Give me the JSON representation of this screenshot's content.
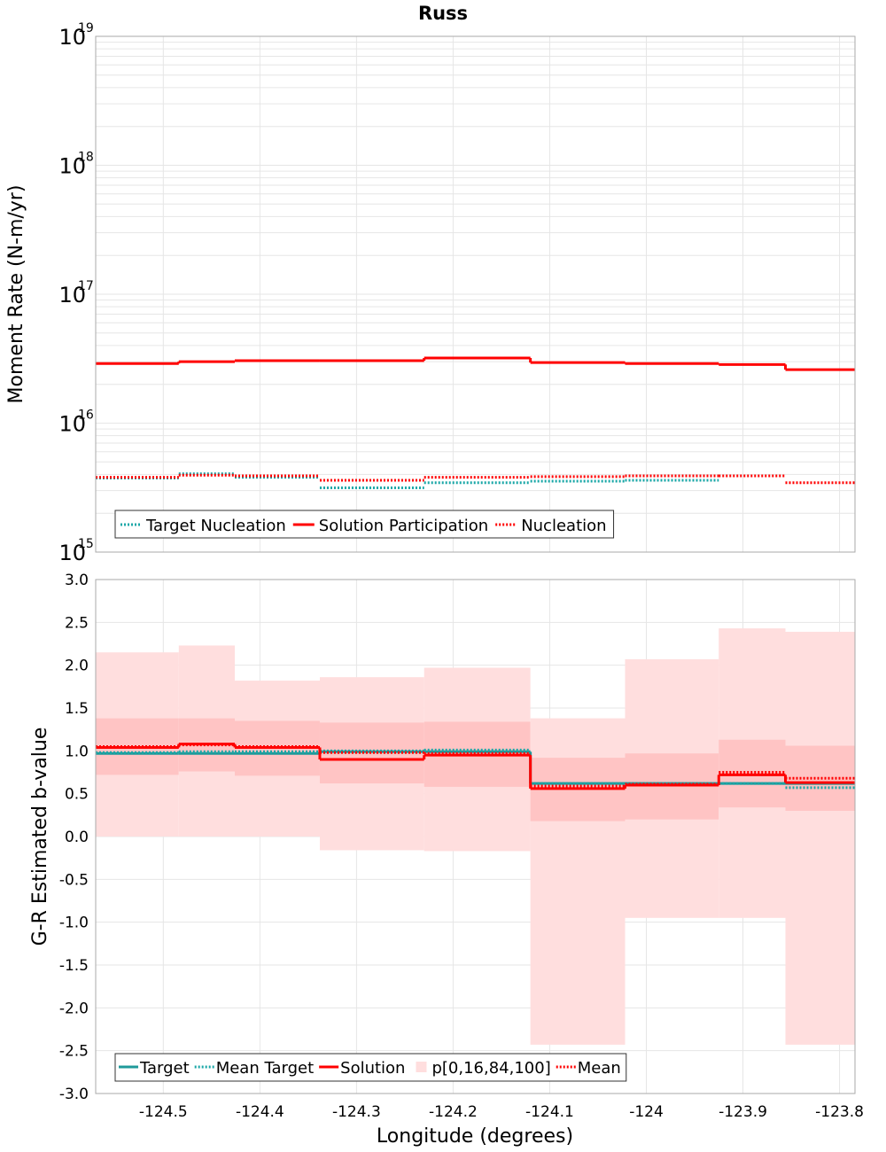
{
  "title": "Russ",
  "colors": {
    "target": "#1aa7a7",
    "solution": "#ff0000",
    "band_outer": "#ffdede",
    "band_inner": "#ffc4c4",
    "grid": "#e6e6e6",
    "target_line": "#1f9a9a"
  },
  "chart_data": [
    {
      "type": "line",
      "name": "moment-rate",
      "ylabel": "Moment Rate (N-m/yr)",
      "yscale": "log",
      "ylim": [
        1000000000000000.0,
        1e+19
      ],
      "xlim": [
        -124.57,
        -123.784
      ],
      "y_tick_labels": [
        {
          "base": "10",
          "exp": "15"
        },
        {
          "base": "10",
          "exp": "16"
        },
        {
          "base": "10",
          "exp": "17"
        },
        {
          "base": "10",
          "exp": "18"
        },
        {
          "base": "10",
          "exp": "19"
        }
      ],
      "bin_edges": [
        -124.57,
        -124.484,
        -124.426,
        -124.338,
        -124.23,
        -124.12,
        -124.022,
        -123.925,
        -123.856,
        -123.784
      ],
      "series": [
        {
          "name": "Target Nucleation",
          "style": "dotted",
          "color": "target",
          "values": [
            3750000000000000.0,
            4050000000000000.0,
            3800000000000000.0,
            3150000000000000.0,
            3450000000000000.0,
            3550000000000000.0,
            3600000000000000.0,
            null,
            null
          ]
        },
        {
          "name": "Solution Participation",
          "style": "solid",
          "color": "solution",
          "values": [
            2.9e+16,
            3e+16,
            3.05e+16,
            3.05e+16,
            3.2e+16,
            2.95e+16,
            2.9e+16,
            2.85e+16,
            2.6e+16
          ]
        },
        {
          "name": "Nucleation",
          "style": "dotted",
          "color": "solution",
          "values": [
            3800000000000000.0,
            3950000000000000.0,
            3900000000000000.0,
            3600000000000000.0,
            3800000000000000.0,
            3850000000000000.0,
            3900000000000000.0,
            3900000000000000.0,
            3450000000000000.0
          ]
        }
      ],
      "legend": [
        "Target Nucleation",
        "Solution Participation",
        "Nucleation"
      ],
      "legend_placement": "bottom-left",
      "grid": true
    },
    {
      "type": "line",
      "name": "b-value",
      "ylabel": "G-R Estimated b-value",
      "xlabel": "Longitude (degrees)",
      "ylim": [
        -3.0,
        3.0
      ],
      "xlim": [
        -124.57,
        -123.784
      ],
      "y_ticks": [
        -3.0,
        -2.5,
        -2.0,
        -1.5,
        -1.0,
        -0.5,
        0.0,
        0.5,
        1.0,
        1.5,
        2.0,
        2.5,
        3.0
      ],
      "y_tick_labels": [
        "-3.0",
        "-2.5",
        "-2.0",
        "-1.5",
        "-1.0",
        "-0.5",
        "0.0",
        "0.5",
        "1.0",
        "1.5",
        "2.0",
        "2.5",
        "3.0"
      ],
      "x_ticks": [
        -124.5,
        -124.4,
        -124.3,
        -124.2,
        -124.1,
        -124.0,
        -123.9,
        -123.8
      ],
      "x_tick_labels": [
        "-124.5",
        "-124.4",
        "-124.3",
        "-124.2",
        "-124.1",
        "-124",
        "-123.9",
        "-123.8"
      ],
      "bin_edges": [
        -124.57,
        -124.484,
        -124.426,
        -124.338,
        -124.23,
        -124.12,
        -124.022,
        -123.925,
        -123.856,
        -123.784
      ],
      "series": [
        {
          "name": "Target",
          "style": "solid",
          "color": "target_line",
          "values": [
            0.97,
            0.97,
            0.97,
            0.99,
            0.99,
            0.62,
            0.62,
            0.62,
            0.62
          ]
        },
        {
          "name": "Mean Target",
          "style": "dotted",
          "color": "target",
          "values": [
            0.98,
            0.99,
            0.99,
            1.0,
            1.01,
            0.62,
            0.62,
            0.62,
            0.57
          ]
        },
        {
          "name": "Solution",
          "style": "solid",
          "color": "solution",
          "values": [
            1.04,
            1.08,
            1.04,
            0.9,
            0.95,
            0.56,
            0.6,
            0.72,
            0.63
          ]
        },
        {
          "name": "Mean",
          "style": "dotted",
          "color": "solution",
          "values": [
            1.05,
            1.07,
            1.05,
            0.98,
            0.97,
            0.59,
            0.61,
            0.75,
            0.68
          ]
        }
      ],
      "bands": {
        "name": "p[0,16,84,100]",
        "p0": [
          0.0,
          0.0,
          0.0,
          -0.16,
          -0.17,
          -2.43,
          -0.95,
          -0.95,
          -2.43
        ],
        "p16": [
          0.72,
          0.76,
          0.71,
          0.62,
          0.58,
          0.18,
          0.2,
          0.34,
          0.3
        ],
        "p84": [
          1.38,
          1.38,
          1.35,
          1.33,
          1.34,
          0.92,
          0.97,
          1.13,
          1.06
        ],
        "p100": [
          2.15,
          2.23,
          1.82,
          1.86,
          1.97,
          1.38,
          2.07,
          2.43,
          2.39
        ]
      },
      "legend": [
        "Target",
        "Mean Target",
        "Solution",
        "p[0,16,84,100]",
        "Mean"
      ],
      "legend_placement": "bottom-left",
      "grid": true
    }
  ]
}
